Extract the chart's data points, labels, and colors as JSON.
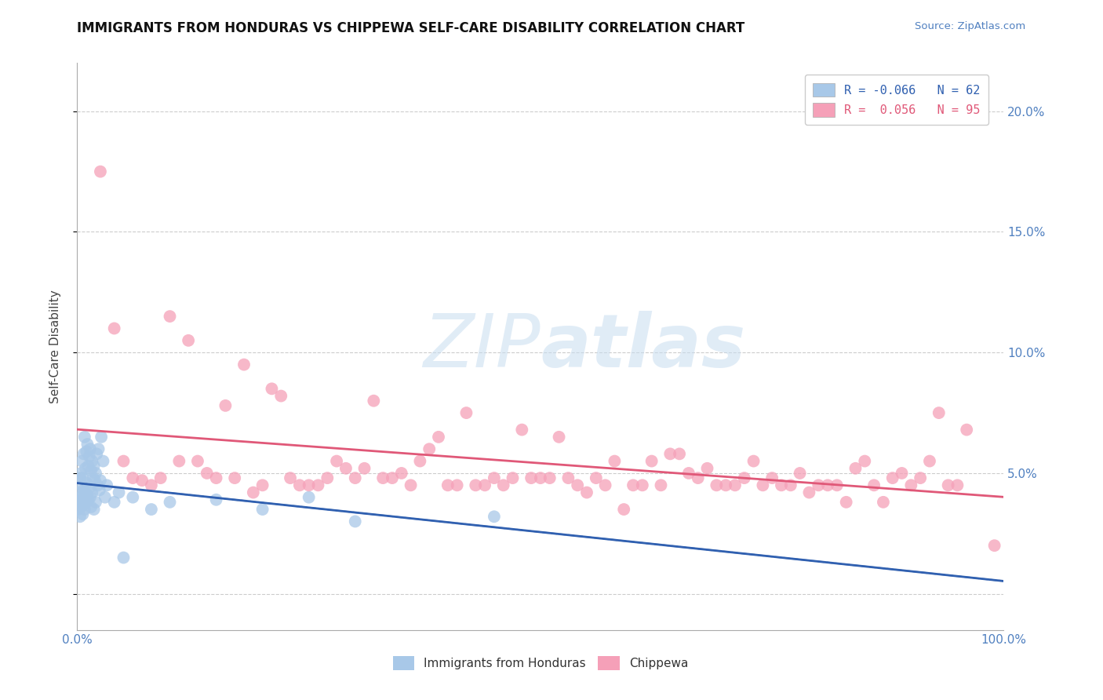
{
  "title": "IMMIGRANTS FROM HONDURAS VS CHIPPEWA SELF-CARE DISABILITY CORRELATION CHART",
  "source_text": "Source: ZipAtlas.com",
  "ylabel": "Self-Care Disability",
  "xlim": [
    0.0,
    100.0
  ],
  "ylim": [
    -1.5,
    22.0
  ],
  "yticks": [
    0,
    5,
    10,
    15,
    20
  ],
  "ytick_labels": [
    "",
    "5.0%",
    "10.0%",
    "15.0%",
    "20.0%"
  ],
  "xtick_labels": [
    "0.0%",
    "100.0%"
  ],
  "legend_R_blue": "-0.066",
  "legend_N_blue": "62",
  "legend_R_pink": "0.056",
  "legend_N_pink": "95",
  "blue_color": "#a8c8e8",
  "pink_color": "#f5a0b8",
  "blue_line_color": "#3060b0",
  "pink_line_color": "#e05878",
  "axis_color": "#5080c0",
  "grid_color": "#cccccc",
  "watermark": "ZIPatlas",
  "blue_scatter_x": [
    0.1,
    0.2,
    0.2,
    0.3,
    0.3,
    0.3,
    0.4,
    0.4,
    0.5,
    0.5,
    0.5,
    0.6,
    0.6,
    0.7,
    0.7,
    0.7,
    0.8,
    0.8,
    0.8,
    0.9,
    0.9,
    1.0,
    1.0,
    1.0,
    1.1,
    1.1,
    1.2,
    1.2,
    1.3,
    1.3,
    1.4,
    1.4,
    1.5,
    1.5,
    1.6,
    1.6,
    1.7,
    1.8,
    1.8,
    1.9,
    2.0,
    2.0,
    2.1,
    2.2,
    2.3,
    2.4,
    2.5,
    2.6,
    2.8,
    3.0,
    3.2,
    4.0,
    4.5,
    5.0,
    6.0,
    8.0,
    10.0,
    15.0,
    20.0,
    25.0,
    30.0,
    45.0
  ],
  "blue_scatter_y": [
    3.5,
    3.8,
    4.2,
    3.2,
    4.0,
    4.8,
    3.6,
    5.0,
    3.9,
    4.5,
    5.5,
    3.3,
    4.8,
    3.7,
    4.3,
    5.8,
    3.5,
    4.2,
    6.5,
    4.0,
    5.2,
    3.8,
    4.6,
    5.9,
    4.1,
    6.2,
    3.9,
    5.3,
    4.4,
    5.7,
    4.0,
    6.0,
    3.6,
    5.1,
    4.2,
    5.5,
    4.8,
    3.5,
    5.3,
    4.7,
    3.8,
    5.0,
    5.8,
    4.5,
    6.0,
    4.3,
    4.7,
    6.5,
    5.5,
    4.0,
    4.5,
    3.8,
    4.2,
    1.5,
    4.0,
    3.5,
    3.8,
    3.9,
    3.5,
    4.0,
    3.0,
    3.2
  ],
  "pink_scatter_x": [
    2.5,
    4.0,
    5.0,
    6.0,
    7.0,
    8.0,
    9.0,
    10.0,
    11.0,
    12.0,
    13.0,
    14.0,
    15.0,
    16.0,
    17.0,
    18.0,
    19.0,
    20.0,
    21.0,
    22.0,
    23.0,
    24.0,
    25.0,
    26.0,
    27.0,
    28.0,
    29.0,
    30.0,
    31.0,
    32.0,
    33.0,
    34.0,
    35.0,
    36.0,
    37.0,
    38.0,
    39.0,
    40.0,
    41.0,
    42.0,
    43.0,
    44.0,
    45.0,
    46.0,
    47.0,
    48.0,
    49.0,
    50.0,
    51.0,
    52.0,
    53.0,
    54.0,
    55.0,
    56.0,
    57.0,
    58.0,
    59.0,
    60.0,
    61.0,
    62.0,
    63.0,
    64.0,
    65.0,
    66.0,
    67.0,
    68.0,
    69.0,
    70.0,
    71.0,
    72.0,
    73.0,
    74.0,
    75.0,
    76.0,
    77.0,
    78.0,
    79.0,
    80.0,
    81.0,
    82.0,
    83.0,
    84.0,
    85.0,
    86.0,
    87.0,
    88.0,
    89.0,
    90.0,
    91.0,
    92.0,
    93.0,
    94.0,
    95.0,
    96.0,
    99.0
  ],
  "pink_scatter_y": [
    17.5,
    11.0,
    5.5,
    4.8,
    4.7,
    4.5,
    4.8,
    11.5,
    5.5,
    10.5,
    5.5,
    5.0,
    4.8,
    7.8,
    4.8,
    9.5,
    4.2,
    4.5,
    8.5,
    8.2,
    4.8,
    4.5,
    4.5,
    4.5,
    4.8,
    5.5,
    5.2,
    4.8,
    5.2,
    8.0,
    4.8,
    4.8,
    5.0,
    4.5,
    5.5,
    6.0,
    6.5,
    4.5,
    4.5,
    7.5,
    4.5,
    4.5,
    4.8,
    4.5,
    4.8,
    6.8,
    4.8,
    4.8,
    4.8,
    6.5,
    4.8,
    4.5,
    4.2,
    4.8,
    4.5,
    5.5,
    3.5,
    4.5,
    4.5,
    5.5,
    4.5,
    5.8,
    5.8,
    5.0,
    4.8,
    5.2,
    4.5,
    4.5,
    4.5,
    4.8,
    5.5,
    4.5,
    4.8,
    4.5,
    4.5,
    5.0,
    4.2,
    4.5,
    4.5,
    4.5,
    3.8,
    5.2,
    5.5,
    4.5,
    3.8,
    4.8,
    5.0,
    4.5,
    4.8,
    5.5,
    7.5,
    4.5,
    4.5,
    6.8,
    2.0
  ]
}
